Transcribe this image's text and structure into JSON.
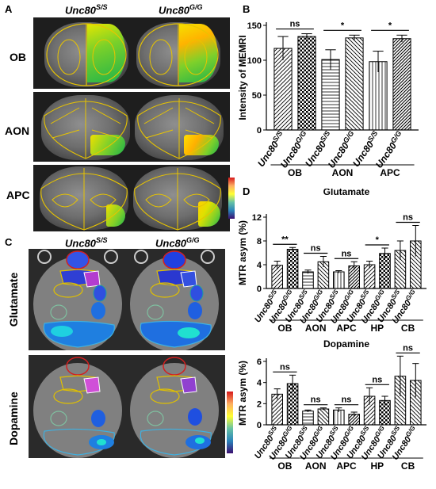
{
  "panels": {
    "A": {
      "label": "A",
      "genotypes": [
        "Unc80",
        "S/S",
        "Unc80",
        "G/G"
      ],
      "rows": [
        "OB",
        "AON",
        "APC"
      ]
    },
    "C": {
      "label": "C",
      "genotypes": [
        "Unc80",
        "S/S",
        "Unc80",
        "G/G"
      ],
      "rows": [
        "Glutamate",
        "Dopamine"
      ]
    },
    "B": {
      "label": "B"
    },
    "D": {
      "label": "D"
    }
  },
  "colors": {
    "accent_bar": "#000000",
    "significance_line": "#000000"
  },
  "chart_data": [
    {
      "panel": "B",
      "type": "bar",
      "ylabel": "Intensity of MEMRI",
      "ylim": [
        0,
        150
      ],
      "yticks": [
        0,
        50,
        100,
        150
      ],
      "groups": [
        "OB",
        "AON",
        "APC"
      ],
      "categories": [
        "Unc80S/S",
        "Unc80G/G",
        "Unc80S/S",
        "Unc80G/G",
        "Unc80S/S",
        "Unc80G/G"
      ],
      "values": [
        117,
        134,
        101,
        132,
        98,
        131
      ],
      "errors": [
        17,
        4,
        14,
        4,
        15,
        5
      ],
      "significance": [
        "ns",
        "*",
        "*"
      ]
    },
    {
      "panel": "D",
      "type": "bar",
      "title": "Glutamate",
      "ylabel": "MTR asym (%)",
      "ylim": [
        0,
        12
      ],
      "yticks": [
        0,
        4,
        8,
        12
      ],
      "groups": [
        "OB",
        "AON",
        "APC",
        "HP",
        "CB"
      ],
      "categories": [
        "Unc80S/S",
        "Unc80G/G",
        "Unc80S/S",
        "Unc80G/G",
        "Unc80S/S",
        "Unc80G/G",
        "Unc80S/S",
        "Unc80G/G",
        "Unc80S/S",
        "Unc80G/G"
      ],
      "values": [
        3.9,
        6.6,
        2.8,
        4.5,
        2.8,
        3.8,
        4.0,
        5.9,
        6.4,
        8.0
      ],
      "errors": [
        0.7,
        0.3,
        0.3,
        0.9,
        0.2,
        0.7,
        0.6,
        0.9,
        1.6,
        2.6
      ],
      "significance": [
        "**",
        "ns",
        "ns",
        "*",
        "ns"
      ]
    },
    {
      "panel": "D",
      "type": "bar",
      "title": "Dopamine",
      "ylabel": "MTR asym (%)",
      "ylim": [
        0,
        6
      ],
      "yticks": [
        0,
        2,
        4,
        6
      ],
      "groups": [
        "OB",
        "AON",
        "APC",
        "HP",
        "CB"
      ],
      "categories": [
        "Unc80S/S",
        "Unc80G/G",
        "Unc80S/S",
        "Unc80G/G",
        "Unc80S/S",
        "Unc80G/G",
        "Unc80S/S",
        "Unc80G/G",
        "Unc80S/S",
        "Unc80G/G"
      ],
      "values": [
        2.9,
        3.9,
        1.3,
        1.5,
        1.4,
        1.0,
        2.7,
        2.3,
        4.6,
        4.2
      ],
      "errors": [
        0.5,
        0.8,
        0.1,
        0.1,
        0.2,
        0.2,
        0.8,
        0.4,
        1.9,
        1.6
      ],
      "significance": [
        "ns",
        "ns",
        "ns",
        "ns",
        "ns"
      ]
    }
  ]
}
